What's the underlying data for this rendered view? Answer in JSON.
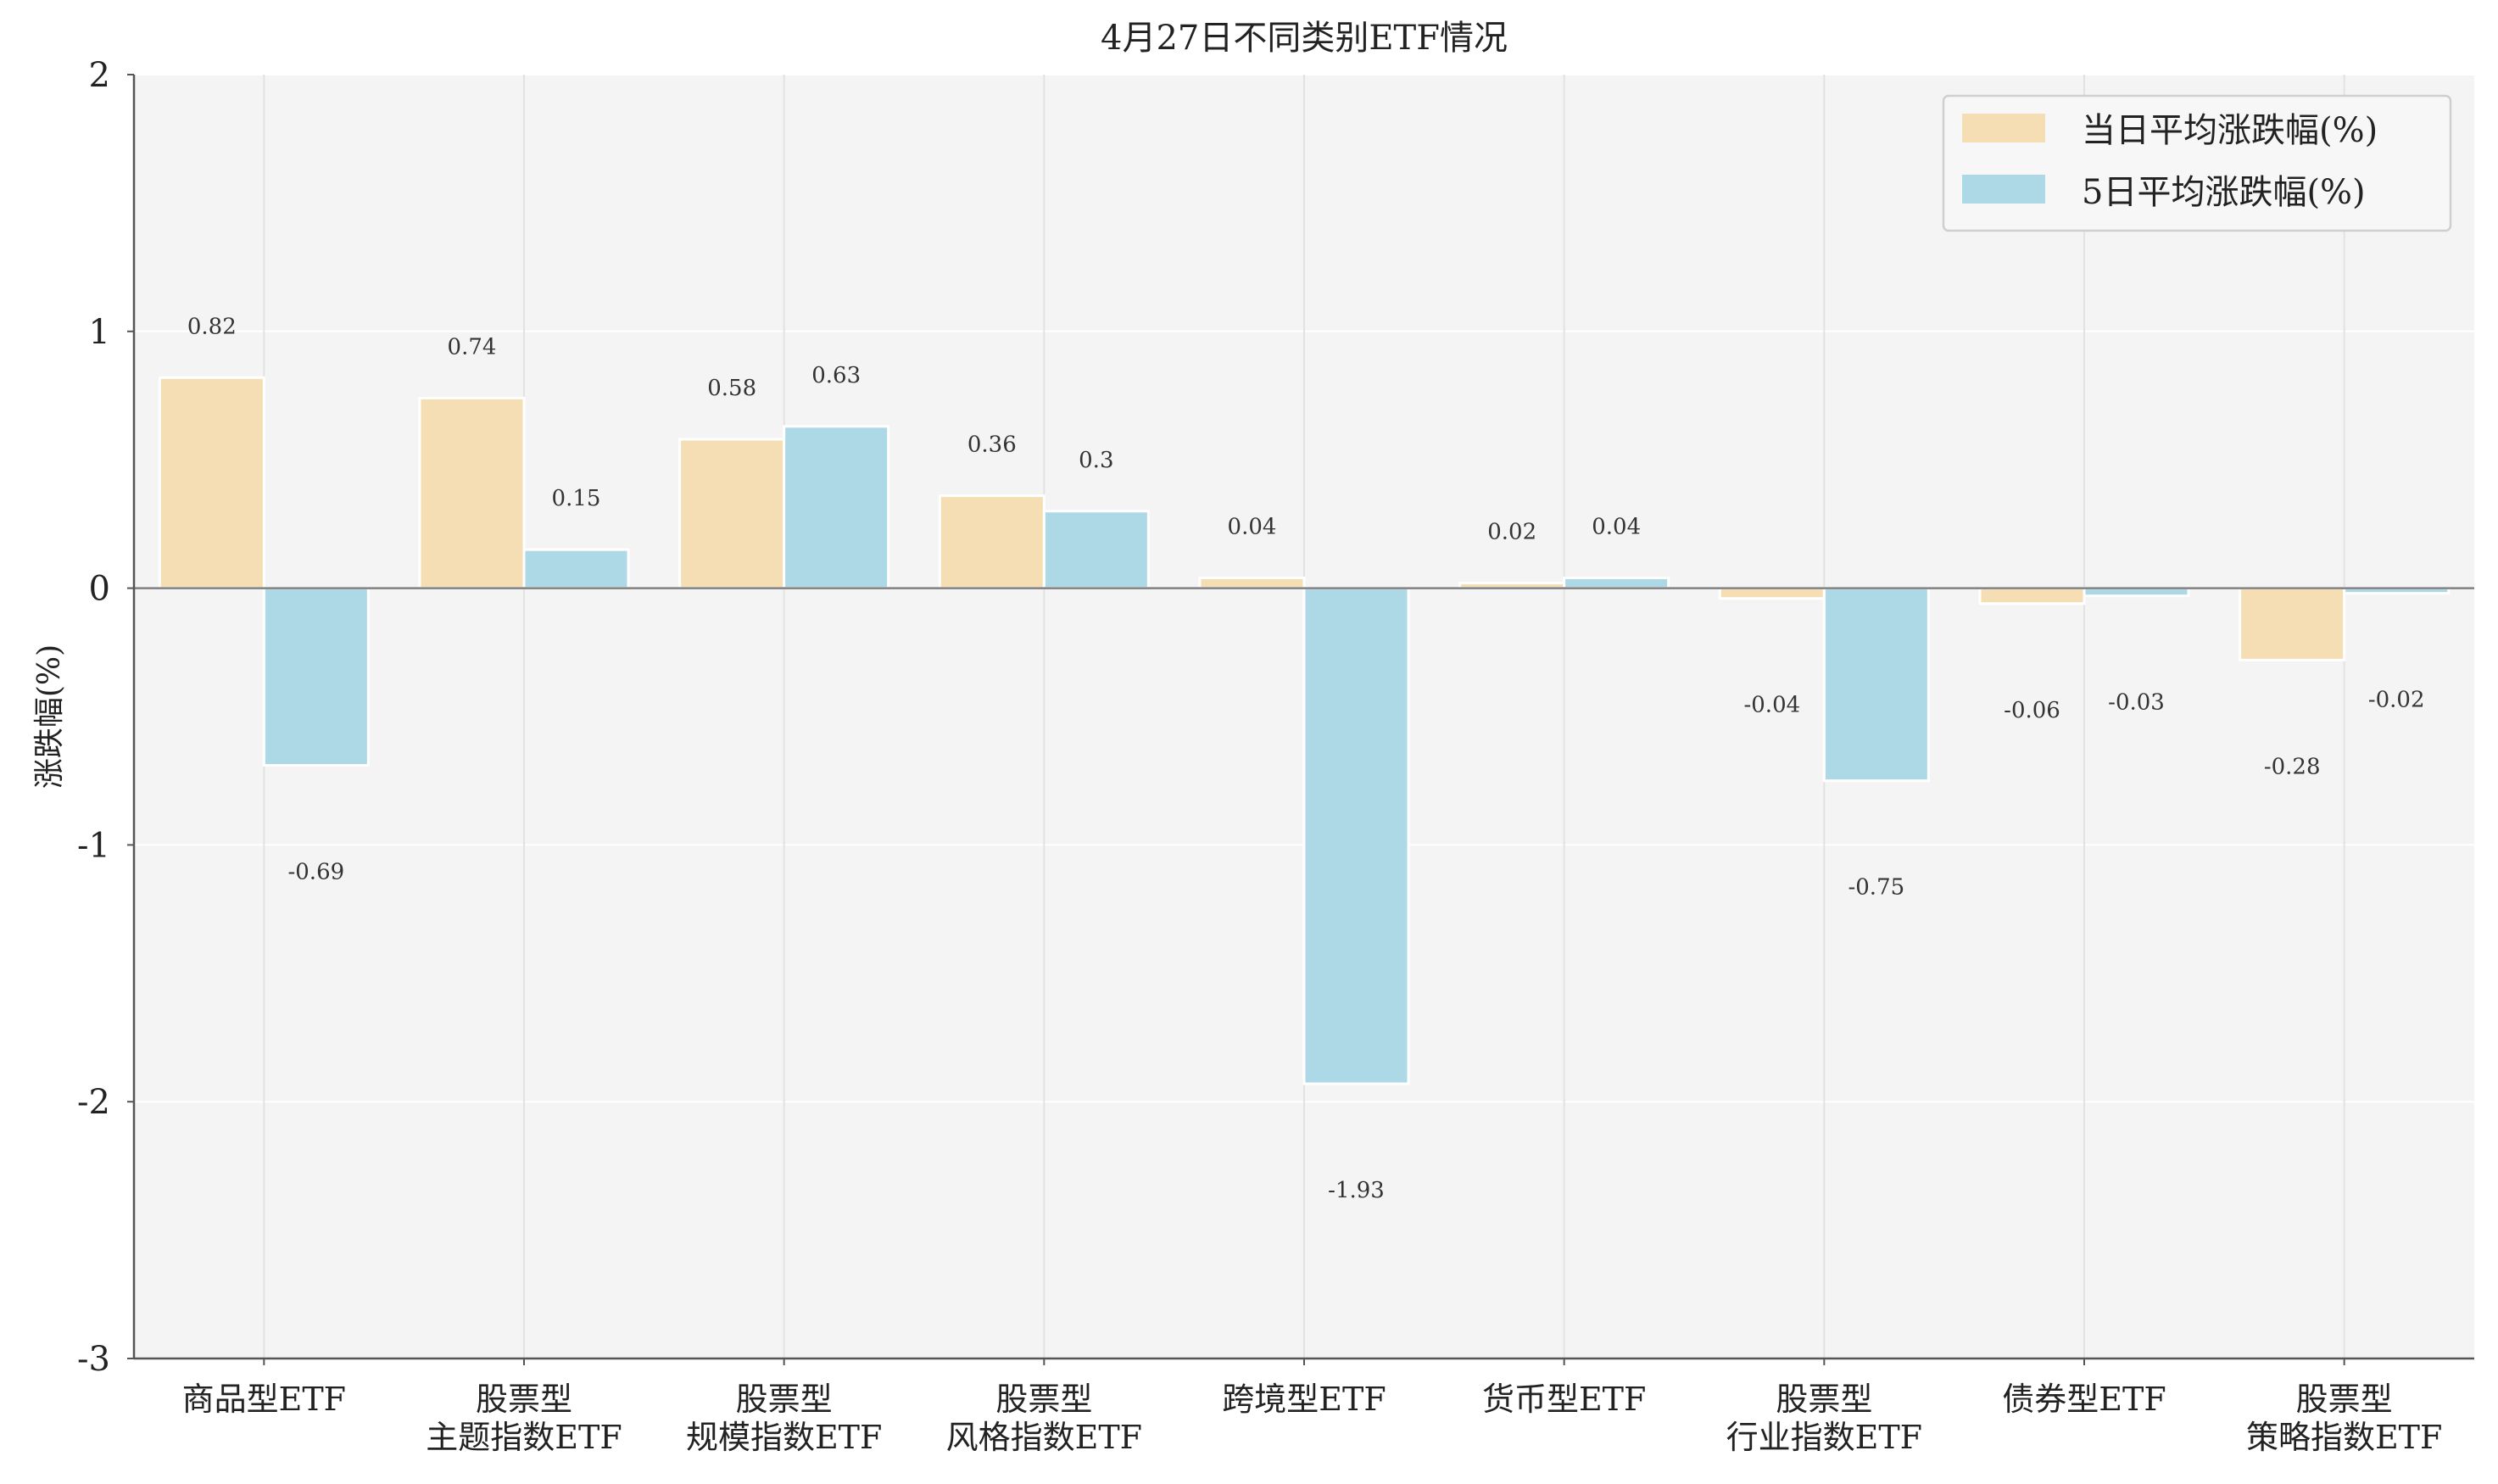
{
  "chart_data": {
    "type": "bar",
    "title": "4月27日不同类别ETF情况",
    "xlabel": "",
    "ylabel": "涨跌幅(%)",
    "ylim": [
      -3,
      2
    ],
    "yticks": [
      2,
      1,
      0,
      -1,
      -2,
      -3
    ],
    "grid": true,
    "legend_position": "top-right",
    "categories": [
      [
        "商品型ETF"
      ],
      [
        "股票型",
        "主题指数ETF"
      ],
      [
        "股票型",
        "规模指数ETF"
      ],
      [
        "股票型",
        "风格指数ETF"
      ],
      [
        "跨境型ETF"
      ],
      [
        "货币型ETF"
      ],
      [
        "股票型",
        "行业指数ETF"
      ],
      [
        "债券型ETF"
      ],
      [
        "股票型",
        "策略指数ETF"
      ]
    ],
    "series": [
      {
        "name": "当日平均涨跌幅(%)",
        "color": "#f5deb3",
        "values": [
          0.82,
          0.74,
          0.58,
          0.36,
          0.04,
          0.02,
          -0.04,
          -0.06,
          -0.28
        ],
        "labels": [
          "0.82",
          "0.74",
          "0.58",
          "0.36",
          "0.04",
          "0.02",
          "-0.04",
          "-0.06",
          "-0.28"
        ]
      },
      {
        "name": "5日平均涨跌幅(%)",
        "color": "#add8e6",
        "values": [
          -0.69,
          0.15,
          0.63,
          0.3,
          -1.93,
          0.04,
          -0.75,
          -0.03,
          -0.02
        ],
        "labels": [
          "-0.69",
          "0.15",
          "0.63",
          "0.3",
          "-1.93",
          "0.04",
          "-0.75",
          "-0.03",
          "-0.02"
        ]
      }
    ]
  }
}
